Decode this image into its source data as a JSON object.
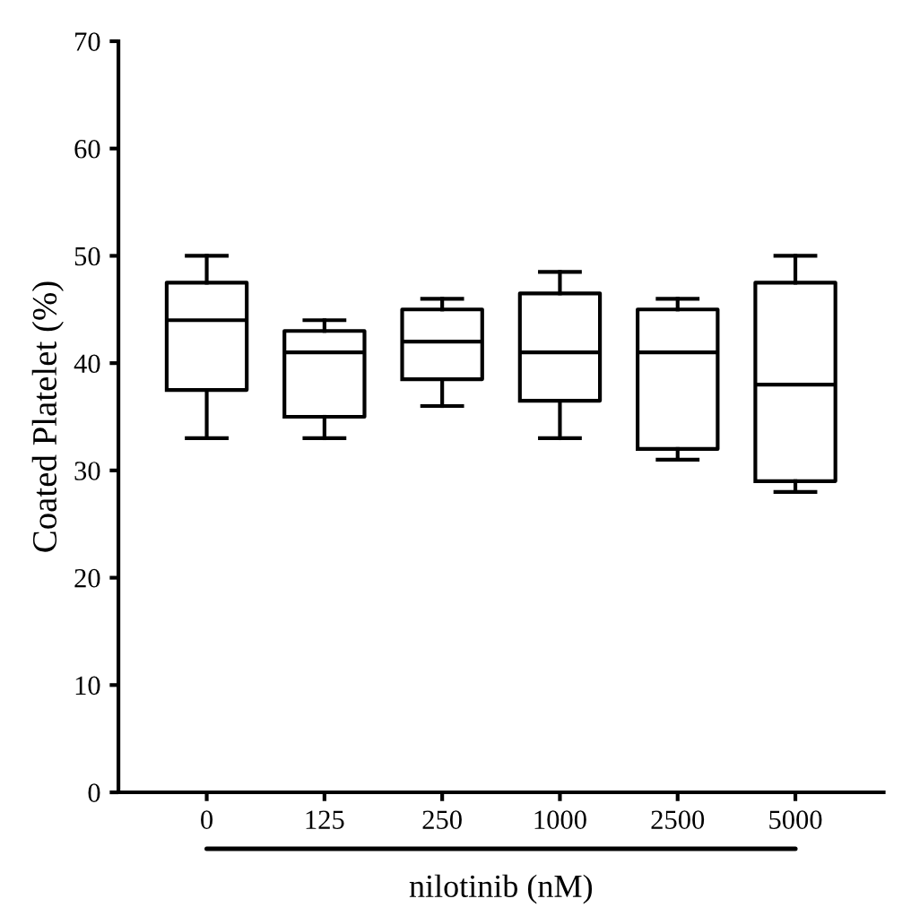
{
  "chart_data": {
    "type": "box",
    "categories": [
      "0",
      "125",
      "250",
      "1000",
      "2500",
      "5000"
    ],
    "boxes": [
      {
        "low": 33,
        "q1": 37.5,
        "median": 44,
        "q3": 47.5,
        "high": 50
      },
      {
        "low": 33,
        "q1": 35,
        "median": 41,
        "q3": 43,
        "high": 44
      },
      {
        "low": 36,
        "q1": 38.5,
        "median": 42,
        "q3": 45,
        "high": 46
      },
      {
        "low": 33,
        "q1": 36.5,
        "median": 41,
        "q3": 46.5,
        "high": 48.5
      },
      {
        "low": 31,
        "q1": 32,
        "median": 41,
        "q3": 45,
        "high": 46
      },
      {
        "low": 28,
        "q1": 29,
        "median": 38,
        "q3": 47.5,
        "high": 50
      }
    ],
    "ylabel": "Coated Platelet (%)",
    "xlabel": "nilotinib (nM)",
    "ylim": [
      0,
      70
    ],
    "yticks": [
      0,
      10,
      20,
      30,
      40,
      50,
      60,
      70
    ],
    "grid": false
  }
}
